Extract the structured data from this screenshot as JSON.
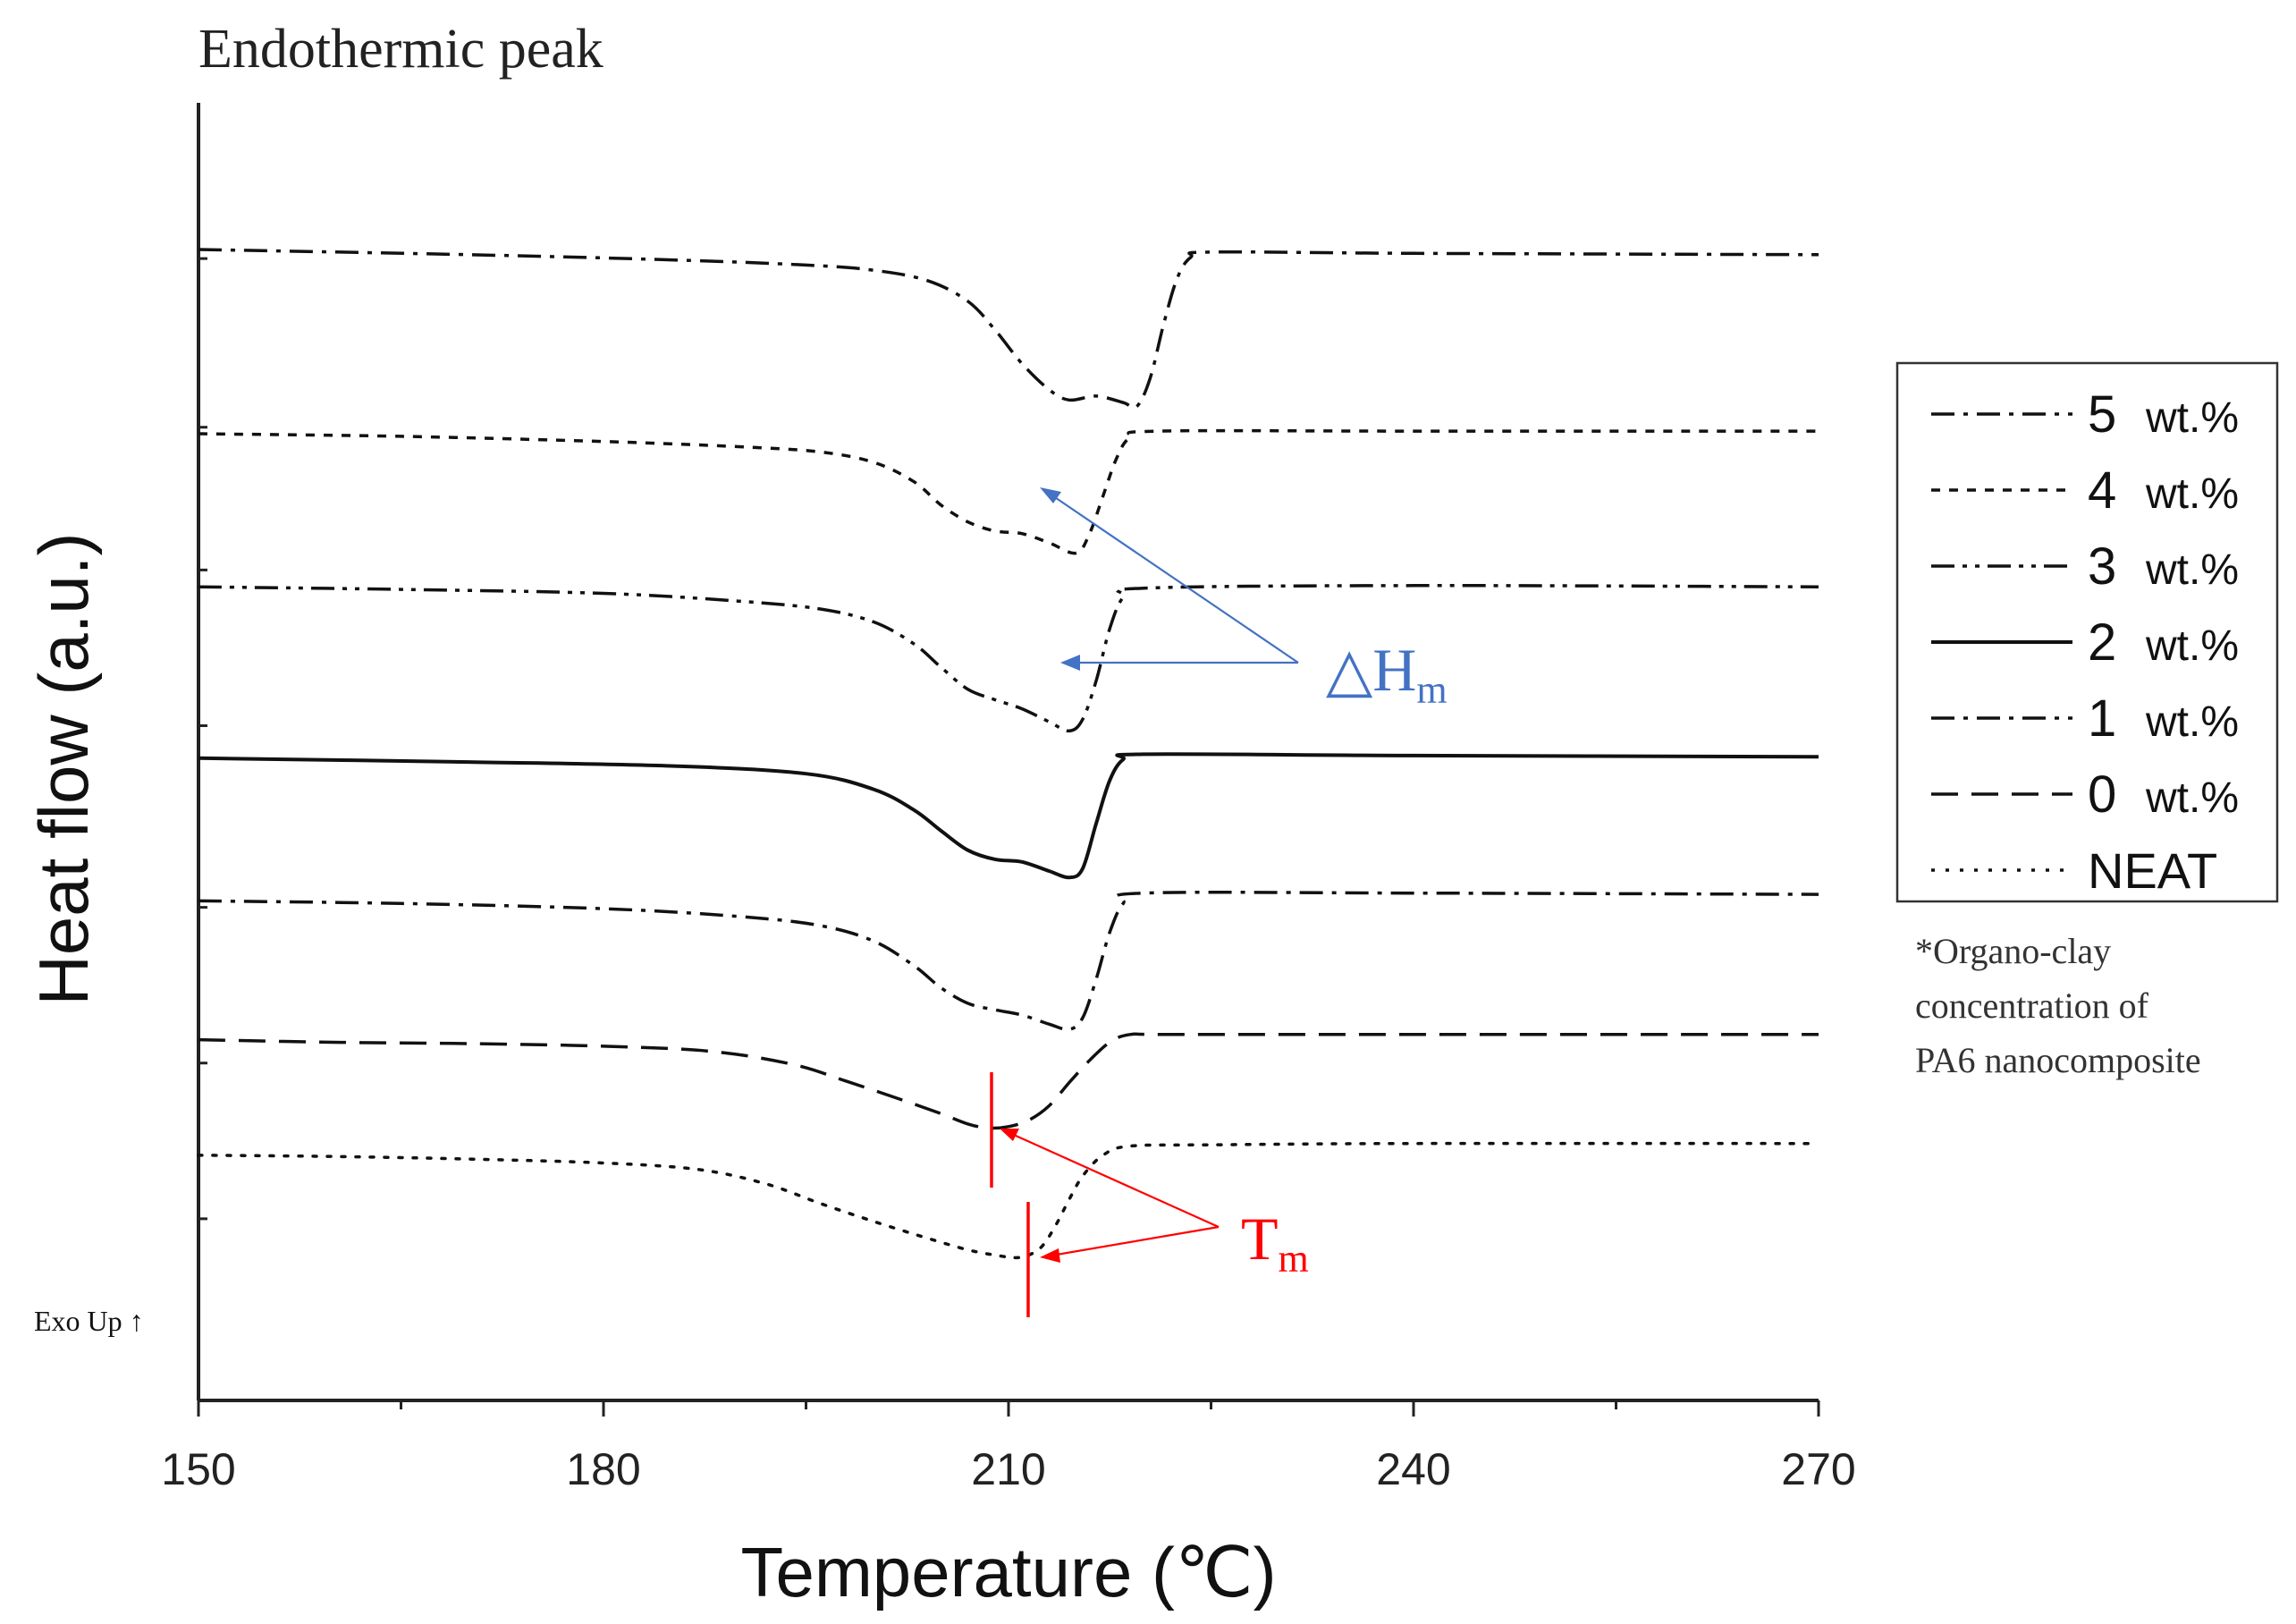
{
  "chart_data": {
    "type": "line",
    "title": "Endothermic peak",
    "xlabel": "Temperature (℃)",
    "ylabel": "Heat flow (a.u.)",
    "xlim": [
      150,
      270
    ],
    "ylim": [
      0,
      100
    ],
    "x_ticks": [
      "150",
      "180",
      "210",
      "240",
      "270"
    ],
    "exo_label": "Exo Up ↑",
    "footnote": [
      "*Organo-clay",
      "concentration of",
      "PA6 nanocomposite"
    ],
    "annotations": {
      "dH": {
        "main": "△H",
        "sub": "m",
        "color": "#4472c4"
      },
      "Tm": {
        "main": "T",
        "sub": "m",
        "color": "#ff0000"
      }
    },
    "series": [
      {
        "name": "5",
        "unit": "wt.%",
        "dash": "dashdot",
        "points": [
          [
            150,
            88.7
          ],
          [
            170,
            88.3
          ],
          [
            185,
            87.9
          ],
          [
            195,
            87.5
          ],
          [
            200,
            87.1
          ],
          [
            204,
            86.3
          ],
          [
            207,
            84.7
          ],
          [
            209,
            82.5
          ],
          [
            211,
            79.9
          ],
          [
            213,
            77.9
          ],
          [
            214.5,
            77.1
          ],
          [
            216.5,
            77.4
          ],
          [
            218.5,
            76.9
          ],
          [
            219.5,
            76.6
          ],
          [
            220.5,
            78.8
          ],
          [
            221.5,
            83.0
          ],
          [
            222.5,
            86.5
          ],
          [
            223.5,
            88.1
          ],
          [
            225,
            88.5
          ],
          [
            240,
            88.4
          ],
          [
            270,
            88.3
          ]
        ]
      },
      {
        "name": "4",
        "unit": "wt.%",
        "dash": "dashed",
        "points": [
          [
            150,
            74.5
          ],
          [
            165,
            74.3
          ],
          [
            180,
            73.9
          ],
          [
            190,
            73.5
          ],
          [
            196,
            73.1
          ],
          [
            200,
            72.3
          ],
          [
            203,
            70.8
          ],
          [
            205,
            69.0
          ],
          [
            207,
            67.7
          ],
          [
            209,
            67.0
          ],
          [
            211,
            66.8
          ],
          [
            213,
            66.1
          ],
          [
            215,
            65.3
          ],
          [
            216,
            66.8
          ],
          [
            217,
            69.7
          ],
          [
            218,
            72.6
          ],
          [
            219,
            74.2
          ],
          [
            221,
            74.7
          ],
          [
            240,
            74.7
          ],
          [
            270,
            74.7
          ]
        ]
      },
      {
        "name": "3",
        "unit": "wt.%",
        "dash": "dashdotdot",
        "points": [
          [
            150,
            62.7
          ],
          [
            165,
            62.5
          ],
          [
            180,
            62.2
          ],
          [
            190,
            61.6
          ],
          [
            196,
            61.0
          ],
          [
            200,
            60.0
          ],
          [
            203,
            58.3
          ],
          [
            205,
            56.5
          ],
          [
            207,
            54.8
          ],
          [
            209,
            54.0
          ],
          [
            211,
            53.3
          ],
          [
            213,
            52.3
          ],
          [
            214.5,
            51.6
          ],
          [
            215.5,
            52.5
          ],
          [
            216.5,
            55.5
          ],
          [
            217.5,
            59.5
          ],
          [
            218.5,
            61.9
          ],
          [
            220,
            62.6
          ],
          [
            240,
            62.8
          ],
          [
            270,
            62.7
          ]
        ]
      },
      {
        "name": "2",
        "unit": "wt.%",
        "dash": "solid",
        "points": [
          [
            150,
            49.5
          ],
          [
            170,
            49.2
          ],
          [
            185,
            48.9
          ],
          [
            195,
            48.3
          ],
          [
            200,
            47.1
          ],
          [
            203,
            45.5
          ],
          [
            205,
            43.9
          ],
          [
            207,
            42.4
          ],
          [
            209,
            41.7
          ],
          [
            211,
            41.5
          ],
          [
            213,
            40.8
          ],
          [
            214.5,
            40.3
          ],
          [
            215.5,
            41.0
          ],
          [
            216.5,
            44.5
          ],
          [
            217.5,
            47.8
          ],
          [
            218.5,
            49.4
          ],
          [
            220,
            49.8
          ],
          [
            240,
            49.7
          ],
          [
            270,
            49.6
          ]
        ]
      },
      {
        "name": "1",
        "unit": "wt.%",
        "dash": "dashdot",
        "points": [
          [
            150,
            38.5
          ],
          [
            165,
            38.3
          ],
          [
            180,
            37.9
          ],
          [
            190,
            37.3
          ],
          [
            196,
            36.6
          ],
          [
            200,
            35.4
          ],
          [
            203,
            33.5
          ],
          [
            205,
            31.8
          ],
          [
            207,
            30.6
          ],
          [
            209,
            30.1
          ],
          [
            211,
            29.7
          ],
          [
            213,
            29.0
          ],
          [
            214.5,
            28.6
          ],
          [
            215.5,
            29.5
          ],
          [
            216.5,
            32.5
          ],
          [
            217.5,
            36.1
          ],
          [
            218.5,
            38.3
          ],
          [
            220,
            39.1
          ],
          [
            240,
            39.1
          ],
          [
            270,
            39.0
          ]
        ]
      },
      {
        "name": "0",
        "unit": "wt.%",
        "dash": "longdash",
        "points": [
          [
            150,
            27.8
          ],
          [
            160,
            27.6
          ],
          [
            170,
            27.5
          ],
          [
            180,
            27.3
          ],
          [
            188,
            26.9
          ],
          [
            194,
            25.9
          ],
          [
            198,
            24.6
          ],
          [
            202,
            23.2
          ],
          [
            205,
            22.1
          ],
          [
            207,
            21.3
          ],
          [
            208.5,
            21.0
          ],
          [
            210,
            21.1
          ],
          [
            211.5,
            21.6
          ],
          [
            213,
            22.7
          ],
          [
            214.5,
            24.5
          ],
          [
            216,
            26.2
          ],
          [
            217.5,
            27.6
          ],
          [
            219,
            28.2
          ],
          [
            222,
            28.2
          ],
          [
            240,
            28.2
          ],
          [
            270,
            28.2
          ]
        ]
      },
      {
        "name": "NEAT",
        "unit": "",
        "dash": "dotted",
        "points": [
          [
            150,
            18.9
          ],
          [
            160,
            18.8
          ],
          [
            170,
            18.6
          ],
          [
            180,
            18.3
          ],
          [
            187,
            17.8
          ],
          [
            192,
            16.7
          ],
          [
            196,
            15.2
          ],
          [
            200,
            13.8
          ],
          [
            204,
            12.5
          ],
          [
            207,
            11.6
          ],
          [
            209,
            11.2
          ],
          [
            210.5,
            11.0
          ],
          [
            211.5,
            11.2
          ],
          [
            212.5,
            11.9
          ],
          [
            213.5,
            13.5
          ],
          [
            214.5,
            15.5
          ],
          [
            215.5,
            17.3
          ],
          [
            217,
            18.9
          ],
          [
            219,
            19.6
          ],
          [
            225,
            19.7
          ],
          [
            240,
            19.8
          ],
          [
            270,
            19.8
          ]
        ]
      }
    ]
  }
}
